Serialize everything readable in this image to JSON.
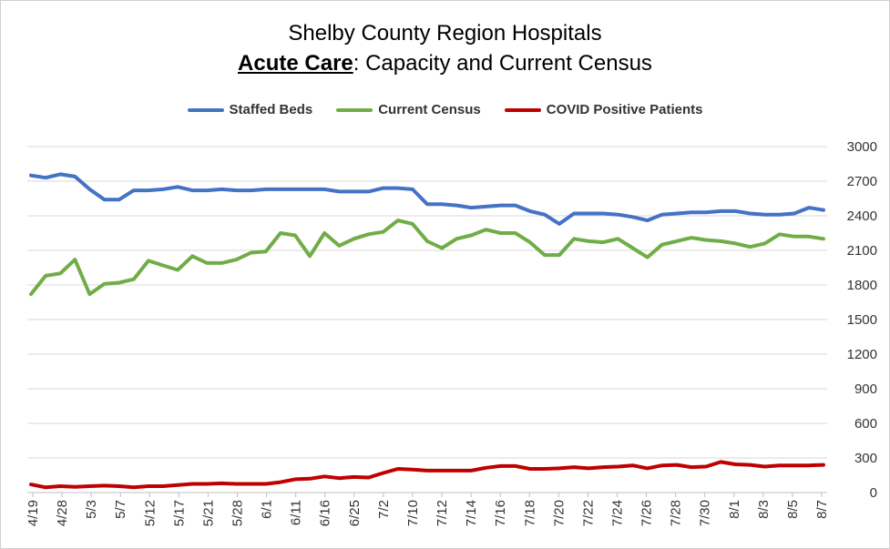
{
  "title": {
    "line1": "Shelby County Region Hospitals",
    "line2_strong": "Acute Care",
    "line2_rest": ": Capacity and Current Census"
  },
  "colors": {
    "staffed": "#4472C4",
    "census": "#70AD47",
    "covid": "#C00000",
    "grid": "#d9d9d9",
    "axis": "#bfbfbf"
  },
  "legend": [
    {
      "name": "Staffed Beds",
      "color_key": "staffed"
    },
    {
      "name": "Current Census",
      "color_key": "census"
    },
    {
      "name": "COVID Positive Patients",
      "color_key": "covid"
    }
  ],
  "chart_data": {
    "type": "line",
    "title": "Shelby County Region Hospitals Acute Care: Capacity and Current Census",
    "xlabel": "",
    "ylabel": "",
    "ylim": [
      0,
      3000
    ],
    "y_ticks": [
      0,
      300,
      600,
      900,
      1200,
      1500,
      1800,
      2100,
      2400,
      2700,
      3000
    ],
    "y_axis_side": "right",
    "grid": true,
    "legend_position": "top",
    "x_tick_labels": [
      "4/19",
      "4/28",
      "5/3",
      "5/7",
      "5/12",
      "5/17",
      "5/21",
      "5/28",
      "6/1",
      "6/11",
      "6/16",
      "6/25",
      "7/2",
      "7/10",
      "7/12",
      "7/14",
      "7/16",
      "7/18",
      "7/20",
      "7/22",
      "7/24",
      "7/26",
      "7/28",
      "7/30",
      "8/1",
      "8/3",
      "8/5",
      "8/7"
    ],
    "series": [
      {
        "name": "Staffed Beds",
        "values": [
          2750,
          2730,
          2760,
          2740,
          2630,
          2540,
          2540,
          2620,
          2620,
          2630,
          2650,
          2620,
          2620,
          2630,
          2620,
          2620,
          2630,
          2630,
          2630,
          2630,
          2630,
          2610,
          2610,
          2610,
          2640,
          2640,
          2630,
          2500,
          2500,
          2490,
          2470,
          2480,
          2490,
          2490,
          2440,
          2410,
          2330,
          2420,
          2420,
          2420,
          2410,
          2390,
          2360,
          2410,
          2420,
          2430,
          2430,
          2440,
          2440,
          2420,
          2410,
          2410,
          2420,
          2470,
          2450
        ]
      },
      {
        "name": "Current Census",
        "values": [
          1720,
          1880,
          1900,
          2020,
          1720,
          1810,
          1820,
          1850,
          2010,
          1970,
          1930,
          2050,
          1990,
          1990,
          2020,
          2080,
          2090,
          2250,
          2230,
          2050,
          2250,
          2140,
          2200,
          2240,
          2260,
          2360,
          2330,
          2180,
          2120,
          2200,
          2230,
          2280,
          2250,
          2250,
          2170,
          2060,
          2060,
          2200,
          2180,
          2170,
          2200,
          2120,
          2040,
          2150,
          2180,
          2210,
          2190,
          2180,
          2160,
          2130,
          2160,
          2240,
          2220,
          2220,
          2200
        ]
      },
      {
        "name": "COVID Positive Patients",
        "values": [
          70,
          45,
          55,
          50,
          55,
          60,
          55,
          45,
          55,
          55,
          65,
          75,
          75,
          80,
          75,
          75,
          75,
          90,
          115,
          120,
          140,
          125,
          135,
          130,
          170,
          205,
          200,
          190,
          190,
          190,
          190,
          215,
          230,
          230,
          205,
          205,
          210,
          220,
          210,
          220,
          225,
          235,
          210,
          235,
          240,
          220,
          225,
          265,
          245,
          240,
          225,
          235,
          235,
          235,
          240
        ]
      }
    ]
  }
}
